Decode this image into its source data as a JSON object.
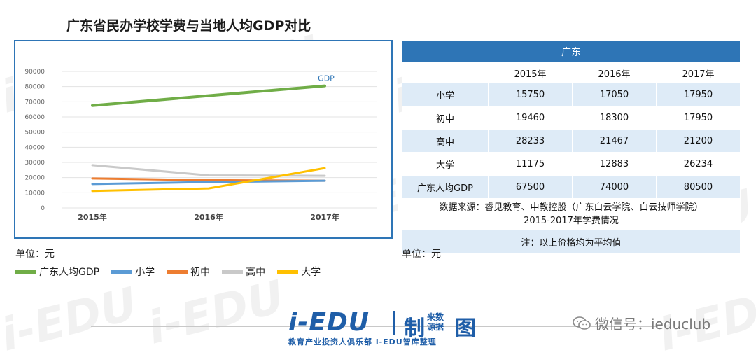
{
  "title": "广东省民办学校学费与当地人均GDP对比",
  "unit_left": "单位：元",
  "unit_right": "单位：元",
  "chart_data": {
    "type": "line",
    "categories": [
      "2015年",
      "2016年",
      "2017年"
    ],
    "ylim": [
      0,
      90000
    ],
    "yticks": [
      0,
      10000,
      20000,
      30000,
      40000,
      50000,
      60000,
      70000,
      80000,
      90000
    ],
    "grid": true,
    "legend_position": "bottom-left",
    "annotation": "GDP",
    "series": [
      {
        "name": "广东人均GDP",
        "values": [
          67500,
          74000,
          80500
        ],
        "color": "#70ad47"
      },
      {
        "name": "小学",
        "values": [
          15750,
          17050,
          17950
        ],
        "color": "#5b9bd5"
      },
      {
        "name": "初中",
        "values": [
          19460,
          18300,
          17950
        ],
        "color": "#ed7d31"
      },
      {
        "name": "高中",
        "values": [
          28233,
          21467,
          21200
        ],
        "color": "#c9c9c9"
      },
      {
        "name": "大学",
        "values": [
          11175,
          12883,
          26234
        ],
        "color": "#ffc000"
      }
    ]
  },
  "table": {
    "region": "广东",
    "years": [
      "2015年",
      "2016年",
      "2017年"
    ],
    "rows": [
      {
        "label": "小学",
        "values": [
          "15750",
          "17050",
          "17950"
        ]
      },
      {
        "label": "初中",
        "values": [
          "19460",
          "18300",
          "17950"
        ]
      },
      {
        "label": "高中",
        "values": [
          "28233",
          "21467",
          "21200"
        ]
      },
      {
        "label": "大学",
        "values": [
          "11175",
          "12883",
          "26234"
        ]
      },
      {
        "label": "广东人均GDP",
        "values": [
          "67500",
          "74000",
          "80500"
        ]
      }
    ],
    "source_line1": "数据来源：睿见教育、中教控股（广东白云学院、白云技师学院）",
    "source_line2": "2015-2017年学费情况",
    "note": "注：以上价格均为平均值"
  },
  "footer": {
    "logo_main": "i-EDU",
    "logo_sub": "制",
    "logo_small": "来数源据",
    "logo_tu": "图",
    "logo_tag": "教育产业投资人俱乐部 i-EDU智库整理",
    "wechat": "微信号：ieduclub",
    "watermark": "i-EDU"
  }
}
